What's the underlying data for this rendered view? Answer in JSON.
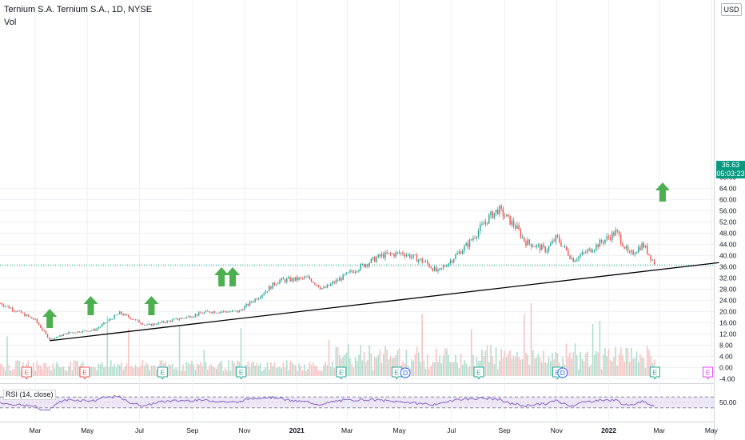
{
  "header": {
    "title": "Ternium S.A. Ternium S.A., 1D, NYSE",
    "volume_label": "Vol"
  },
  "currency_button": "USD",
  "last_price": {
    "value": "36.63",
    "countdown": "05:03:23"
  },
  "colors": {
    "up": "#26a69a",
    "down": "#ef5350",
    "trendline": "#000000",
    "arrow": "#4caf50",
    "rsi_line": "#7e57c2",
    "rsi_band": "#ede7f6",
    "price_tag": "#089981"
  },
  "chart_data": {
    "type": "candlestick",
    "title": "Ternium S.A. Ternium S.A., 1D, NYSE",
    "y_axis_ticks": [
      "64.00",
      "60.00",
      "56.00",
      "52.00",
      "48.00",
      "44.00",
      "40.00",
      "36.00",
      "32.00",
      "28.00",
      "24.00",
      "20.00",
      "16.00",
      "12.00",
      "8.00",
      "4.00",
      "0.00",
      "-4.00"
    ],
    "y_axis_top_partial": "68.00",
    "ylim": [
      -5,
      68
    ],
    "x_axis_ticks": [
      "Mar",
      "May",
      "Jul",
      "Sep",
      "Nov",
      "2021",
      "Mar",
      "May",
      "Jul",
      "Sep",
      "Nov",
      "2022",
      "Mar",
      "May"
    ],
    "price_series_approx": [
      {
        "date": "2020-01-20",
        "close": 23.0
      },
      {
        "date": "2020-02-10",
        "close": 20.0
      },
      {
        "date": "2020-03-01",
        "close": 17.0
      },
      {
        "date": "2020-03-18",
        "close": 10.0
      },
      {
        "date": "2020-04-10",
        "close": 12.5
      },
      {
        "date": "2020-05-10",
        "close": 13.5
      },
      {
        "date": "2020-06-08",
        "close": 19.5
      },
      {
        "date": "2020-07-10",
        "close": 15.0
      },
      {
        "date": "2020-08-10",
        "close": 17.0
      },
      {
        "date": "2020-09-20",
        "close": 20.0
      },
      {
        "date": "2020-10-25",
        "close": 20.0
      },
      {
        "date": "2020-11-20",
        "close": 26.0
      },
      {
        "date": "2020-12-10",
        "close": 31.0
      },
      {
        "date": "2021-01-15",
        "close": 32.0
      },
      {
        "date": "2021-02-01",
        "close": 28.0
      },
      {
        "date": "2021-03-10",
        "close": 35.0
      },
      {
        "date": "2021-04-10",
        "close": 40.0
      },
      {
        "date": "2021-05-05",
        "close": 41.0
      },
      {
        "date": "2021-06-01",
        "close": 37.5
      },
      {
        "date": "2021-06-15",
        "close": 34.0
      },
      {
        "date": "2021-07-20",
        "close": 44.0
      },
      {
        "date": "2021-08-15",
        "close": 54.0
      },
      {
        "date": "2021-08-25",
        "close": 56.5
      },
      {
        "date": "2021-09-15",
        "close": 50.0
      },
      {
        "date": "2021-09-25",
        "close": 45.0
      },
      {
        "date": "2021-10-20",
        "close": 42.0
      },
      {
        "date": "2021-11-01",
        "close": 46.5
      },
      {
        "date": "2021-11-20",
        "close": 38.5
      },
      {
        "date": "2021-12-10",
        "close": 42.0
      },
      {
        "date": "2022-01-10",
        "close": 48.5
      },
      {
        "date": "2022-01-25",
        "close": 40.0
      },
      {
        "date": "2022-02-10",
        "close": 44.0
      },
      {
        "date": "2022-02-25",
        "close": 36.6
      }
    ],
    "trendline": {
      "start": {
        "date": "2020-03-18",
        "price": 9.6
      },
      "end": {
        "date": "2022-05-10",
        "price": 37.5
      }
    },
    "annotations": {
      "arrow_up_dates": [
        "2020-03-18",
        "2020-05-05",
        "2020-07-15",
        "2020-10-05",
        "2020-10-18",
        "2022-03-05"
      ],
      "earnings_markers": [
        {
          "date": "2020-02-20",
          "label": "E",
          "result": "miss"
        },
        {
          "date": "2020-04-28",
          "label": "E",
          "result": "miss"
        },
        {
          "date": "2020-07-28",
          "label": "E",
          "result": "beat"
        },
        {
          "date": "2020-10-28",
          "label": "E",
          "result": "beat"
        },
        {
          "date": "2021-02-22",
          "label": "E",
          "result": "beat"
        },
        {
          "date": "2021-04-28",
          "label": "E",
          "result": "beat"
        },
        {
          "date": "2021-08-02",
          "label": "E",
          "result": "beat"
        },
        {
          "date": "2021-11-02",
          "label": "E",
          "result": "beat"
        },
        {
          "date": "2022-02-24",
          "label": "E",
          "result": "beat"
        },
        {
          "date": "2022-04-27",
          "label": "E",
          "result": "upcoming"
        }
      ],
      "dividend_markers": [
        {
          "date": "2021-05-08",
          "label": "D"
        },
        {
          "date": "2021-11-08",
          "label": "D"
        }
      ]
    },
    "rsi": {
      "label": "RSI (14, close)",
      "tick": "50.00",
      "upper": 70,
      "lower": 30
    }
  }
}
